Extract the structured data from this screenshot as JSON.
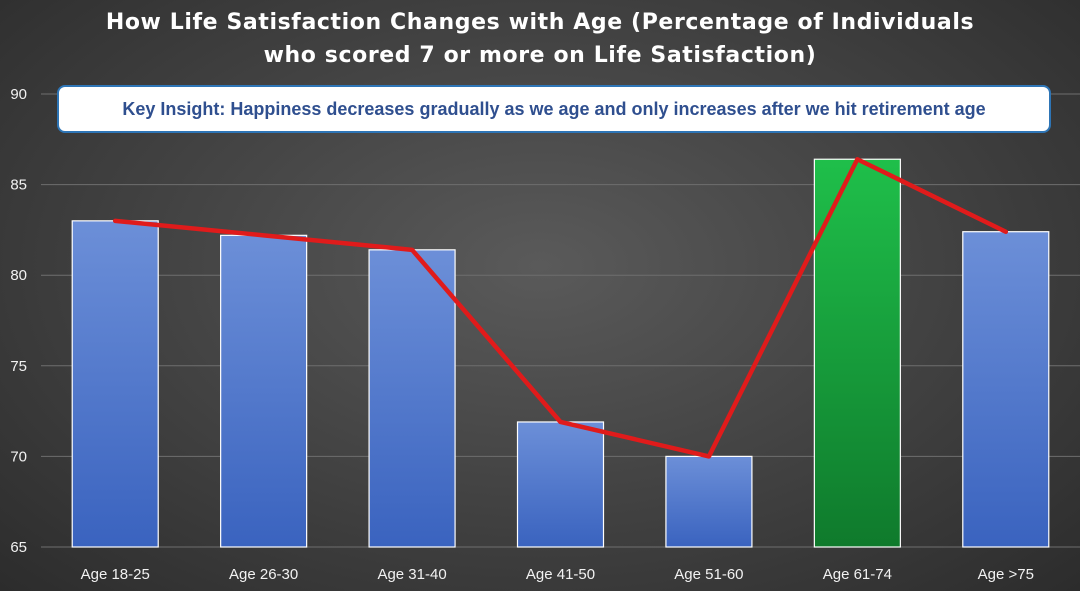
{
  "chart_data": {
    "type": "bar",
    "title_lines": [
      "How Life Satisfaction Changes with Age (Percentage of Individuals",
      "who scored 7 or more on Life Satisfaction)"
    ],
    "annotation": "Key Insight: Happiness decreases gradually as we age and only increases after we hit retirement age",
    "categories": [
      "Age 18-25",
      "Age 26-30",
      "Age 31-40",
      "Age 41-50",
      "Age 51-60",
      "Age 61-74",
      "Age >75"
    ],
    "values": [
      83.0,
      82.2,
      81.4,
      71.9,
      70.0,
      86.4,
      82.4
    ],
    "highlight_index": 5,
    "overlay_line": {
      "values": [
        83.0,
        82.2,
        81.4,
        71.9,
        70.0,
        86.4,
        82.4
      ]
    },
    "ylim": [
      65,
      90
    ],
    "yticks": [
      65,
      70,
      75,
      80,
      85,
      90
    ],
    "grid": "horizontal",
    "colors": {
      "bar": "#4472c4",
      "highlight": "#1e9e3e",
      "line": "#e01b1b",
      "grid": "#6e6e6e"
    }
  }
}
